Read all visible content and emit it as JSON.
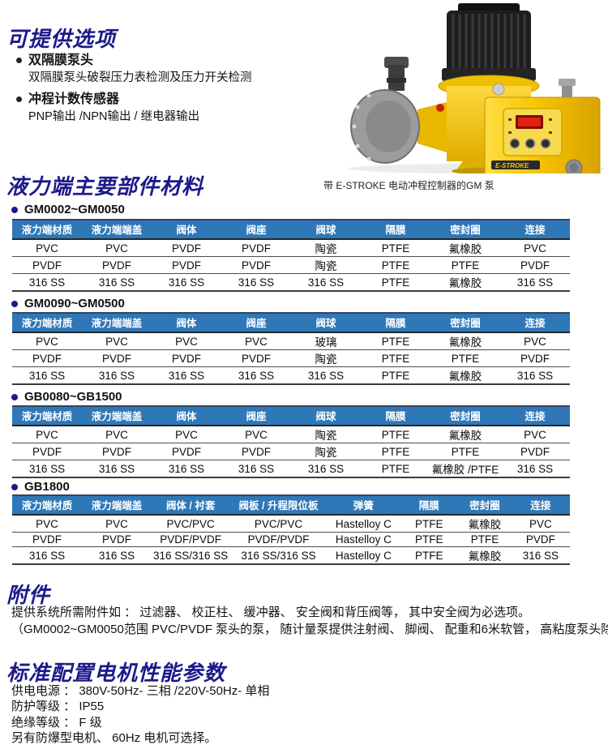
{
  "options_section": {
    "title": "可提供选项",
    "items": [
      {
        "label": "双隔膜泵头",
        "detail": "双隔膜泵头破裂压力表检测及压力开关检测"
      },
      {
        "label": "冲程计数传感器",
        "detail": "PNP输出 /NPN输出 / 继电器输出"
      }
    ]
  },
  "pump_figure": {
    "caption": "带 E-STROKE 电动冲程控制器的GM 泵",
    "device_label": "E-STROKE"
  },
  "materials_section": {
    "title": "液力端主要部件材料",
    "tables": [
      {
        "model": "GM0002~GM0050",
        "headers": [
          "液力端材质",
          "液力端端盖",
          "阀体",
          "阀座",
          "阀球",
          "隔膜",
          "密封圈",
          "连接"
        ],
        "rows": [
          [
            "PVC",
            "PVC",
            "PVDF",
            "PVDF",
            "陶瓷",
            "PTFE",
            "氟橡胶",
            "PVC"
          ],
          [
            "PVDF",
            "PVDF",
            "PVDF",
            "PVDF",
            "陶瓷",
            "PTFE",
            "PTFE",
            "PVDF"
          ],
          [
            "316 SS",
            "316 SS",
            "316 SS",
            "316 SS",
            "316 SS",
            "PTFE",
            "氟橡胶",
            "316 SS"
          ]
        ]
      },
      {
        "model": "GM0090~GM0500",
        "headers": [
          "液力端材质",
          "液力端端盖",
          "阀体",
          "阀座",
          "阀球",
          "隔膜",
          "密封圈",
          "连接"
        ],
        "rows": [
          [
            "PVC",
            "PVC",
            "PVC",
            "PVC",
            "玻璃",
            "PTFE",
            "氟橡胶",
            "PVC"
          ],
          [
            "PVDF",
            "PVDF",
            "PVDF",
            "PVDF",
            "陶瓷",
            "PTFE",
            "PTFE",
            "PVDF"
          ],
          [
            "316 SS",
            "316 SS",
            "316 SS",
            "316 SS",
            "316 SS",
            "PTFE",
            "氟橡胶",
            "316 SS"
          ]
        ]
      },
      {
        "model": "GB0080~GB1500",
        "headers": [
          "液力端材质",
          "液力端端盖",
          "阀体",
          "阀座",
          "阀球",
          "隔膜",
          "密封圈",
          "连接"
        ],
        "rows": [
          [
            "PVC",
            "PVC",
            "PVC",
            "PVC",
            "陶瓷",
            "PTFE",
            "氟橡胶",
            "PVC"
          ],
          [
            "PVDF",
            "PVDF",
            "PVDF",
            "PVDF",
            "陶瓷",
            "PTFE",
            "PTFE",
            "PVDF"
          ],
          [
            "316 SS",
            "316 SS",
            "316 SS",
            "316 SS",
            "316 SS",
            "PTFE",
            "氟橡胶 /PTFE",
            "316 SS"
          ]
        ]
      },
      {
        "model": "GB1800",
        "headers": [
          "液力端材质",
          "液力端端盖",
          "阀体 / 衬套",
          "阀板 / 升程限位板",
          "弹簧",
          "隔膜",
          "密封圈",
          "连接"
        ],
        "rows": [
          [
            "PVC",
            "PVC",
            "PVC/PVC",
            "PVC/PVC",
            "Hastelloy C",
            "PTFE",
            "氟橡胶",
            "PVC"
          ],
          [
            "PVDF",
            "PVDF",
            "PVDF/PVDF",
            "PVDF/PVDF",
            "Hastelloy C",
            "PTFE",
            "PTFE",
            "PVDF"
          ],
          [
            "316 SS",
            "316 SS",
            "316 SS/316 SS",
            "316 SS/316 SS",
            "Hastelloy C",
            "PTFE",
            "氟橡胶",
            "316 SS"
          ]
        ]
      }
    ]
  },
  "accessories_section": {
    "title": "附件",
    "lines": [
      "提供系统所需附件如 ：  过滤器、 校正柱、 缓冲器、 安全阀和背压阀等， 其中安全阀为必选项。",
      "（GM0002~GM0050范围 PVC/PVDF 泵头的泵， 随计量泵提供注射阀、 脚阀、 配重和6米软管， 高粘度泵头除外）"
    ]
  },
  "motor_section": {
    "title": "标准配置电机性能参数",
    "lines": [
      "供电电源 ：  380V-50Hz- 三相 /220V-50Hz- 单相",
      "防护等级 ：  IP55",
      "绝缘等级 ：  F 级",
      "另有防爆型电机、 60Hz 电机可选择。"
    ]
  },
  "colors": {
    "section_title": "#1c1a8a",
    "table_header_bg": "#2e78b8",
    "table_header_text": "#ffffff",
    "pump_yellow": "#f6c400",
    "pump_head_gray": "#9c9c9c",
    "motor_black": "#1d1d1d",
    "led_red": "#e02110"
  }
}
